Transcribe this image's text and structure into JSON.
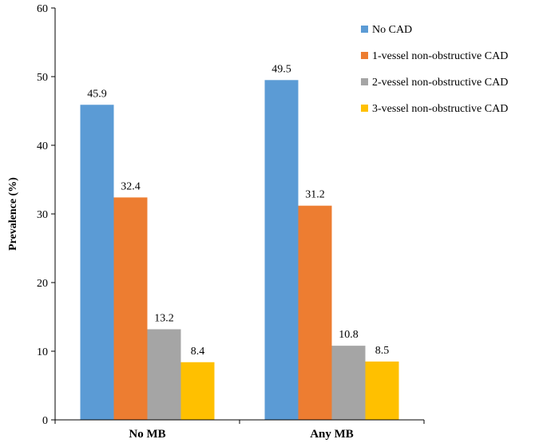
{
  "chart_data": {
    "type": "bar",
    "categories": [
      "No MB",
      "Any MB"
    ],
    "series": [
      {
        "name": "No CAD",
        "values": [
          45.9,
          49.5
        ],
        "color": "#5B9BD5"
      },
      {
        "name": "1-vessel non-obstructive CAD",
        "values": [
          32.4,
          31.2
        ],
        "color": "#ED7D31"
      },
      {
        "name": "2-vessel non-obstructive CAD",
        "values": [
          13.2,
          10.8
        ],
        "color": "#A5A5A5"
      },
      {
        "name": "3-vessel non-obstructive CAD",
        "values": [
          8.4,
          8.5
        ],
        "color": "#FFC000"
      }
    ],
    "title": "",
    "xlabel": "",
    "ylabel": "Prevalence (%)",
    "ylim": [
      0,
      60
    ],
    "yticks": [
      0,
      10,
      20,
      30,
      40,
      50,
      60
    ],
    "data_labels": [
      "45.9",
      "32.4",
      "13.2",
      "8.4",
      "49.5",
      "31.2",
      "10.8",
      "8.5"
    ],
    "tick_labels": [
      "0",
      "10",
      "20",
      "30",
      "40",
      "50",
      "60"
    ],
    "grid": false,
    "legend_position": "top-right"
  }
}
